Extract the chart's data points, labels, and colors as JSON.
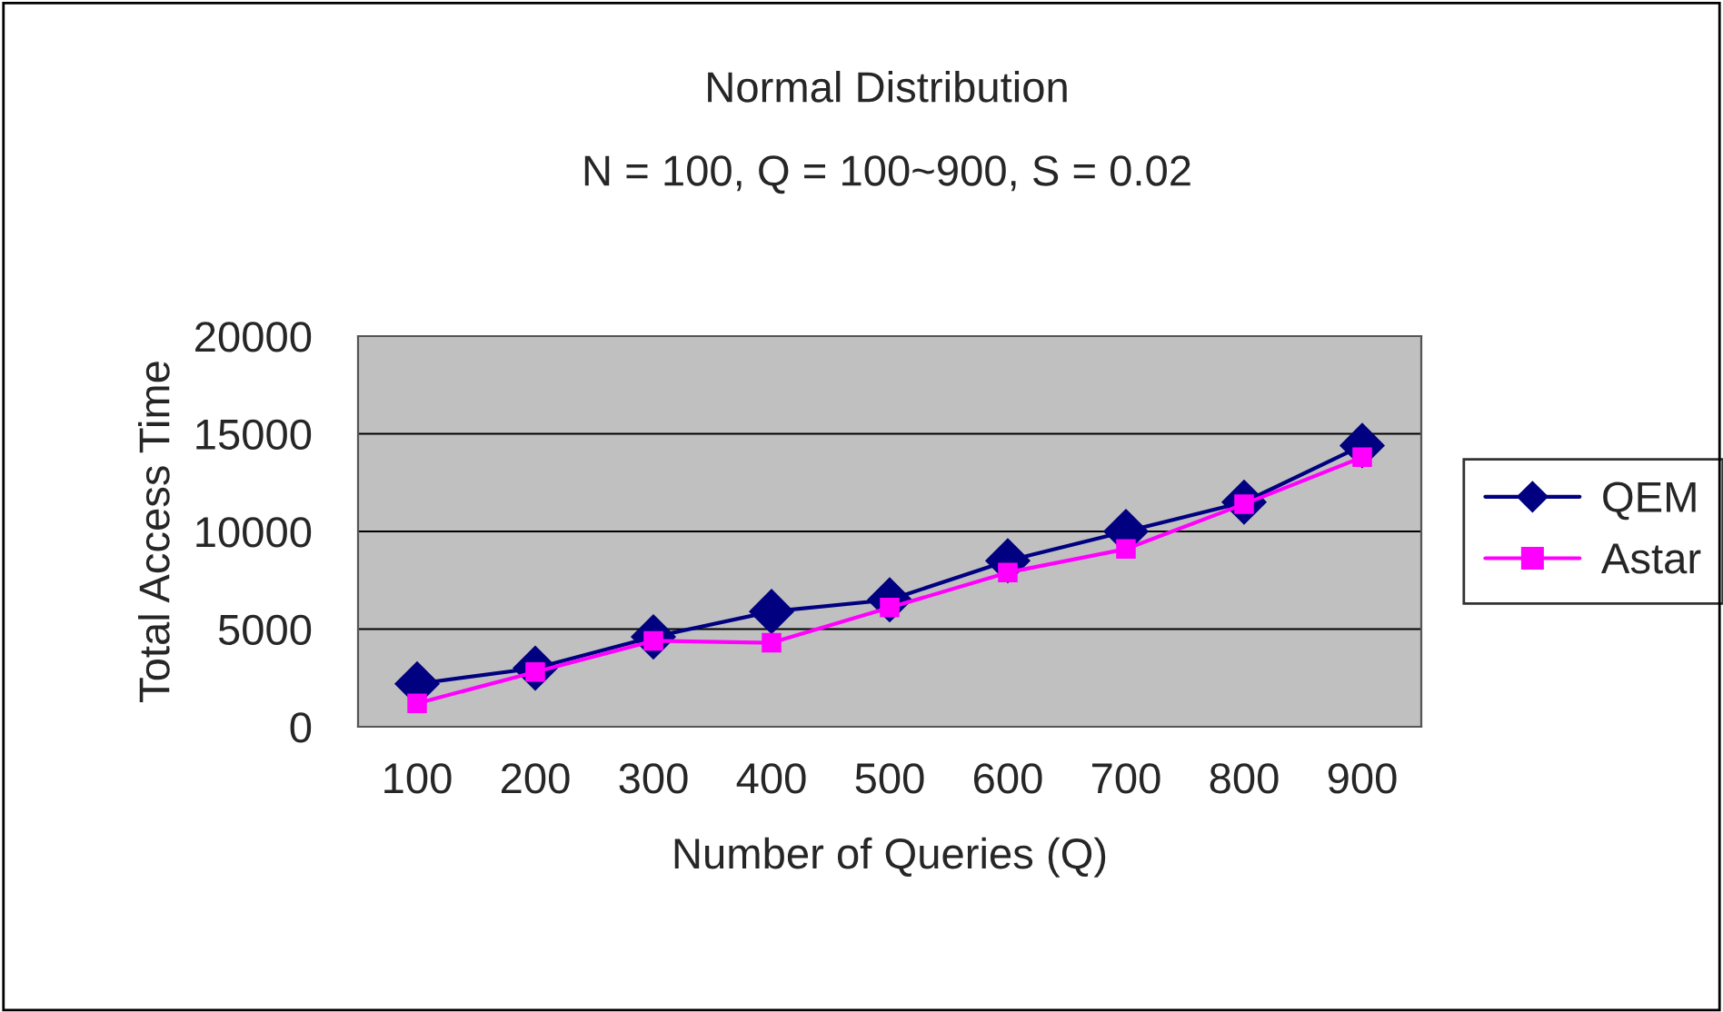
{
  "chart_data": {
    "type": "line",
    "title": "Normal Distribution",
    "subtitle": "N = 100, Q = 100~900, S = 0.02",
    "xlabel": "Number of Queries (Q)",
    "ylabel": "Total Access Time",
    "categories": [
      "100",
      "200",
      "300",
      "400",
      "500",
      "600",
      "700",
      "800",
      "900"
    ],
    "series": [
      {
        "name": "QEM",
        "color": "#000080",
        "marker": "diamond",
        "values": [
          2200,
          3000,
          4600,
          5900,
          6500,
          8500,
          10000,
          11500,
          14400
        ]
      },
      {
        "name": "Astar",
        "color": "#ff00ff",
        "marker": "square",
        "values": [
          1200,
          2800,
          4400,
          4300,
          6100,
          7900,
          9100,
          11400,
          13800
        ]
      }
    ],
    "ylim": [
      0,
      20000
    ],
    "yticks": [
      0,
      5000,
      10000,
      15000,
      20000
    ],
    "grid": "y",
    "legend": "right"
  }
}
